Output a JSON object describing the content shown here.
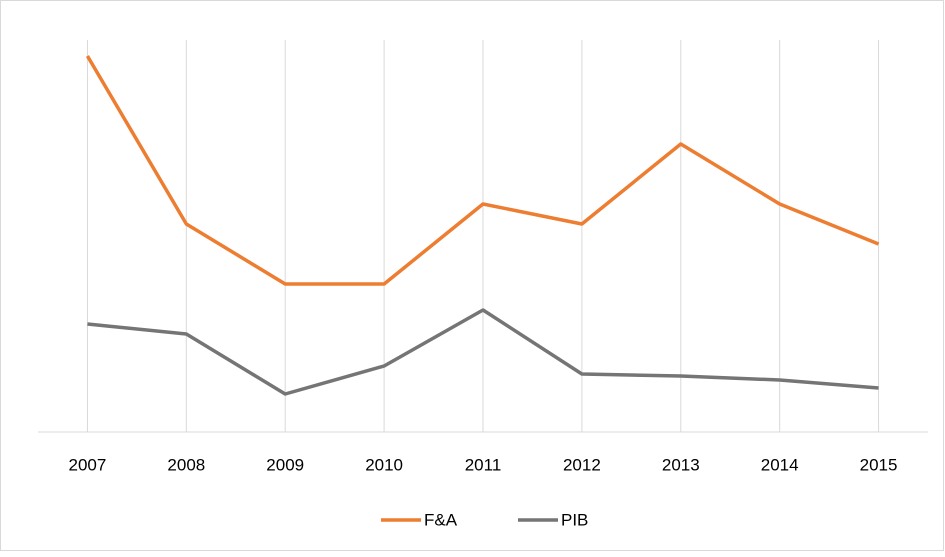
{
  "chart_data": {
    "type": "line",
    "categories": [
      "2007",
      "2008",
      "2009",
      "2010",
      "2011",
      "2012",
      "2013",
      "2014",
      "2015"
    ],
    "series": [
      {
        "name": "F&A",
        "color": "#ED7D31",
        "values": [
          94,
          52,
          37,
          37,
          57,
          52,
          72,
          57,
          47
        ]
      },
      {
        "name": "PIB",
        "color": "#757575",
        "values": [
          27,
          24.5,
          9.5,
          16.5,
          30.5,
          14.5,
          14,
          13,
          11
        ]
      }
    ],
    "ylim": [
      0,
      100
    ],
    "grid": true,
    "legend": "bottom"
  }
}
